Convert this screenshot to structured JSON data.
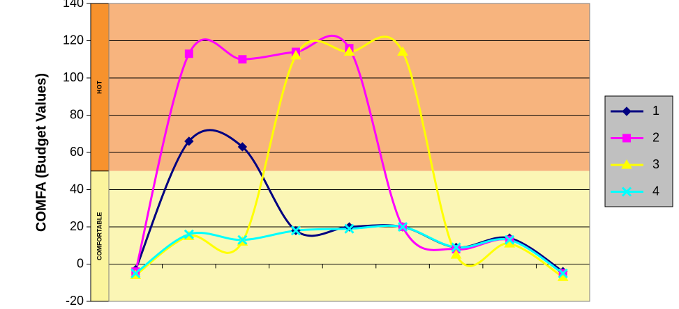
{
  "chart_data": {
    "type": "line",
    "title": "",
    "xlabel": "",
    "ylabel": "COMFA (Budget Values)",
    "ylim": [
      -20,
      140
    ],
    "yticks": [
      -20,
      0,
      20,
      40,
      60,
      80,
      100,
      120,
      140
    ],
    "grid": "horizontal",
    "legend_position": "right",
    "x": [
      1,
      2,
      3,
      4,
      5,
      6,
      7,
      8,
      9
    ],
    "bands": [
      {
        "label": "HOT",
        "from": 50,
        "to": 140,
        "color": "#f7b47e",
        "bar_color": "#f7922d"
      },
      {
        "label": "COMFORTABLE",
        "from": -20,
        "to": 50,
        "color": "#fbf6b5",
        "bar_color": "#fbf49d"
      }
    ],
    "series": [
      {
        "name": "1",
        "color": "#000080",
        "marker": "diamond",
        "values": [
          -3,
          66,
          63,
          18,
          20,
          20,
          9,
          14,
          -4
        ]
      },
      {
        "name": "2",
        "color": "#ff00ff",
        "marker": "square",
        "values": [
          -4,
          113,
          110,
          114,
          116,
          20,
          8,
          13,
          -5
        ]
      },
      {
        "name": "3",
        "color": "#ffff00",
        "marker": "triangle",
        "values": [
          -6,
          15,
          12,
          112,
          114,
          114,
          5,
          11,
          -7
        ]
      },
      {
        "name": "4",
        "color": "#00ffff",
        "marker": "x",
        "values": [
          -5,
          16,
          13,
          18,
          19,
          20,
          9,
          13,
          -5
        ]
      }
    ]
  }
}
